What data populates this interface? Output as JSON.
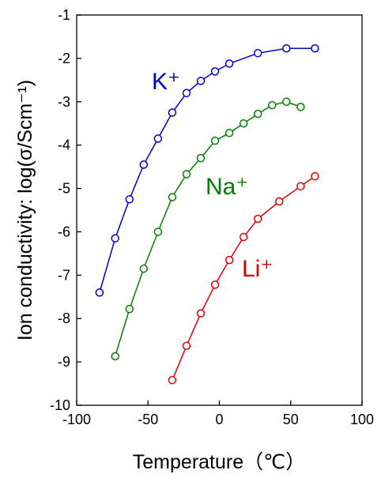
{
  "chart_data": {
    "type": "line",
    "title": "",
    "xlabel": "Temperature（℃）",
    "ylabel": "Ion conductivity: log(σ/Scm⁻¹)",
    "xlim": [
      -100,
      100
    ],
    "ylim": [
      -10,
      -1
    ],
    "xticks": [
      "-100",
      "-50",
      "0",
      "50",
      "100"
    ],
    "yticks": [
      "-1",
      "-2",
      "-3",
      "-4",
      "-5",
      "-6",
      "-7",
      "-8",
      "-9",
      "-10"
    ],
    "grid": false,
    "legend": "none",
    "series": [
      {
        "name": "K⁺",
        "color": "#0000cc",
        "x": [
          -84,
          -73,
          -63,
          -53,
          -43,
          -33,
          -23,
          -13,
          -3,
          7,
          27,
          47,
          67
        ],
        "y": [
          -7.4,
          -6.15,
          -5.25,
          -4.45,
          -3.85,
          -3.25,
          -2.8,
          -2.52,
          -2.3,
          -2.12,
          -1.88,
          -1.77,
          -1.77
        ]
      },
      {
        "name": "Na⁺",
        "color": "#008000",
        "x": [
          -73,
          -63,
          -53,
          -43,
          -33,
          -23,
          -13,
          -3,
          7,
          17,
          27,
          37,
          47,
          57
        ],
        "y": [
          -8.87,
          -7.78,
          -6.85,
          -6.0,
          -5.2,
          -4.67,
          -4.3,
          -3.9,
          -3.72,
          -3.5,
          -3.28,
          -3.08,
          -3.0,
          -3.12
        ]
      },
      {
        "name": "Li⁺",
        "color": "#dd0000",
        "x": [
          -33,
          -23,
          -13,
          -3,
          7,
          17,
          27,
          42,
          57,
          67
        ],
        "y": [
          -9.42,
          -8.63,
          -7.88,
          -7.22,
          -6.65,
          -6.12,
          -5.7,
          -5.3,
          -4.95,
          -4.72
        ]
      }
    ]
  }
}
